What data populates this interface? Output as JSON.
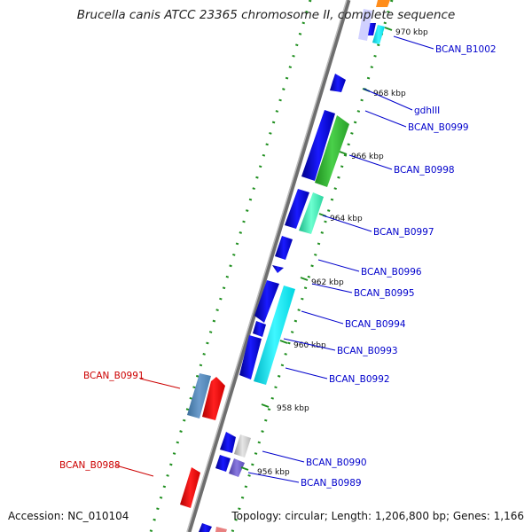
{
  "title": "Brucella canis ATCC 23365 chromosome II, complete sequence",
  "footer": {
    "accession": "Accession: NC_010104",
    "summary": "Topology: circular; Length: 1,206,800 bp; Genes: 1,166"
  },
  "colors": {
    "backbone": "#808080",
    "tick": "#1f8f1f",
    "label_forward": "#0000cc",
    "label_reverse": "#cc0000"
  },
  "ticks": [
    "970 kbp",
    "968 kbp",
    "966 kbp",
    "964 kbp",
    "962 kbp",
    "960 kbp",
    "958 kbp",
    "956 kbp"
  ],
  "gene_labels_right": [
    "BCAN_B1002",
    "gdhIII",
    "BCAN_B0999",
    "BCAN_B0998",
    "BCAN_B0997",
    "BCAN_B0996",
    "BCAN_B0995",
    "BCAN_B0994",
    "BCAN_B0993",
    "BCAN_B0992",
    "BCAN_B0990",
    "BCAN_B0989"
  ],
  "gene_labels_left": [
    "BCAN_B0991",
    "BCAN_B0988"
  ]
}
